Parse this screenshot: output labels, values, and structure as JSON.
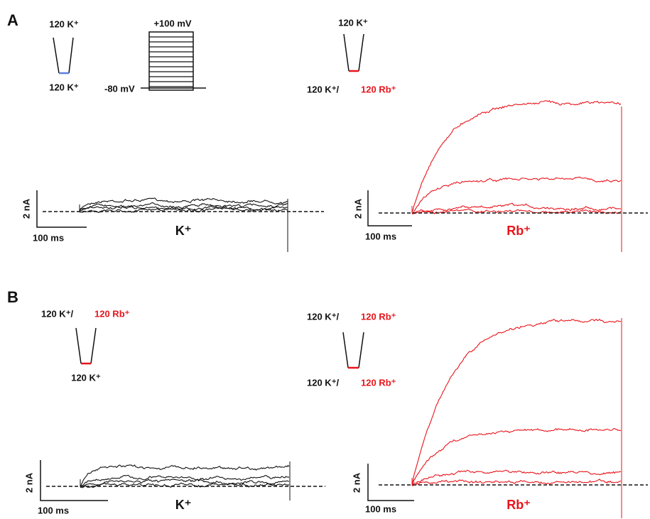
{
  "panels": [
    {
      "label": "A",
      "left": {
        "pipette_top": "120 K⁺",
        "pipette_bottom": "120 K⁺",
        "protocol_top": "+100 mV",
        "protocol_left": "-80 mV",
        "scale_y": "2 nA",
        "scale_x": "100 ms",
        "ion": "K⁺"
      },
      "right": {
        "pipette_top": "120 K⁺",
        "pipette_bottom_black": "120 K⁺/",
        "pipette_bottom_red": "120 Rb⁺",
        "scale_y": "2 nA",
        "scale_x": "100 ms",
        "ion": "Rb⁺"
      }
    },
    {
      "label": "B",
      "left": {
        "pipette_top_black": "120 K⁺/",
        "pipette_top_red": "120 Rb⁺",
        "pipette_bottom": "120 K⁺",
        "scale_y": "2 nA",
        "scale_x": "100 ms",
        "ion": "K⁺"
      },
      "right": {
        "pipette_top_black": "120 K⁺/",
        "pipette_top_red": "120 Rb⁺",
        "pipette_bottom_black": "120 K⁺/",
        "pipette_bottom_red": "120 Rb⁺",
        "scale_y": "2 nA",
        "scale_x": "100 ms",
        "ion": "Rb⁺"
      }
    }
  ]
}
